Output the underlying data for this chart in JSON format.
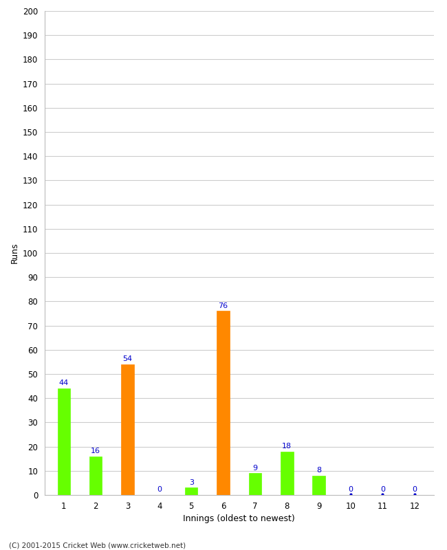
{
  "values": [
    44,
    16,
    54,
    0,
    3,
    76,
    9,
    18,
    8,
    0,
    0,
    0
  ],
  "colors": [
    "#66ff00",
    "#66ff00",
    "#ff8800",
    "#66ff00",
    "#66ff00",
    "#ff8800",
    "#66ff00",
    "#66ff00",
    "#66ff00",
    null,
    null,
    null
  ],
  "categories": [
    "1",
    "2",
    "3",
    "4",
    "5",
    "6",
    "7",
    "8",
    "9",
    "10",
    "11",
    "12"
  ],
  "ylabel": "Runs",
  "xlabel": "Innings (oldest to newest)",
  "ylim": [
    0,
    200
  ],
  "yticks": [
    0,
    10,
    20,
    30,
    40,
    50,
    60,
    70,
    80,
    90,
    100,
    110,
    120,
    130,
    140,
    150,
    160,
    170,
    180,
    190,
    200
  ],
  "label_color": "#0000cc",
  "dot_color": "#0000cc",
  "background_color": "#ffffff",
  "grid_color": "#cccccc",
  "footer": "(C) 2001-2015 Cricket Web (www.cricketweb.net)"
}
